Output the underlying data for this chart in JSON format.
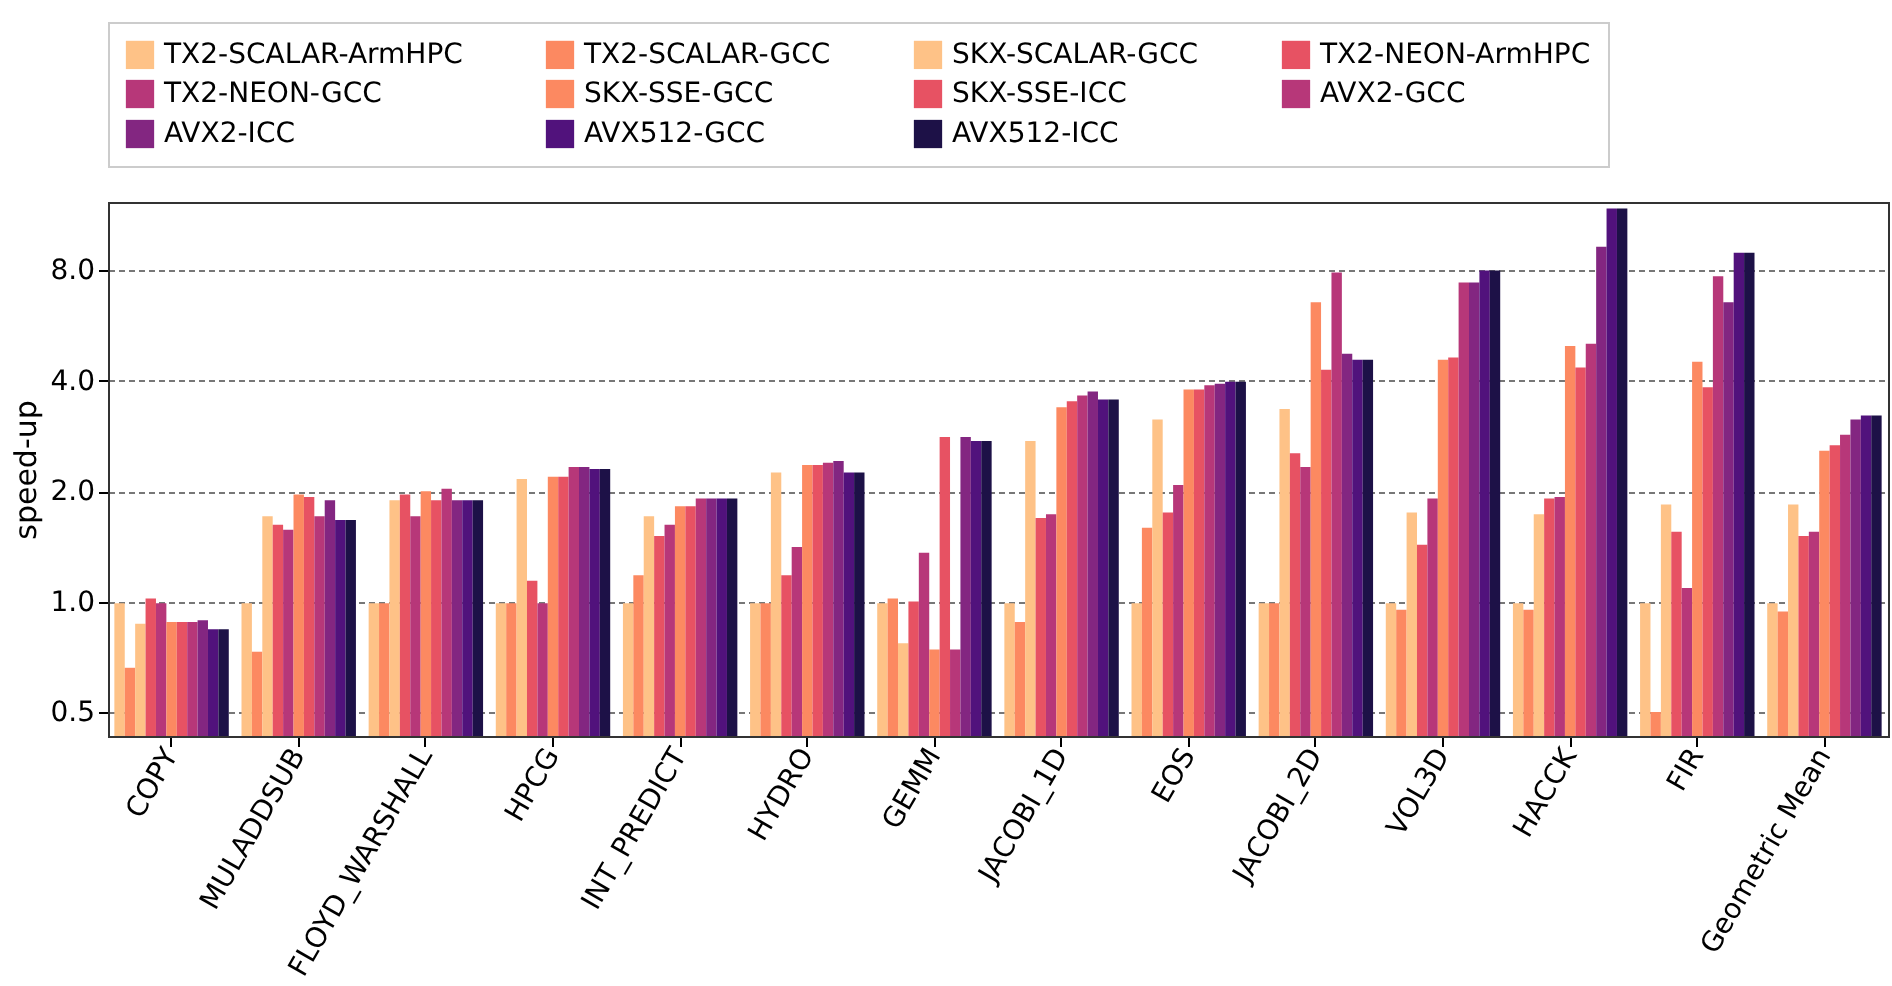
{
  "chart_data": {
    "type": "bar",
    "ylabel": "speed-up",
    "log": "y",
    "grid": "y",
    "legend": "top",
    "ylim": [
      0.43,
      12.3
    ],
    "yticks": [
      0.5,
      {
        "value": 1,
        "label": "1.0"
      },
      {
        "value": 2,
        "label": "2.0"
      },
      {
        "value": 4,
        "label": "4.0"
      },
      {
        "value": 8,
        "label": "8.0"
      }
    ],
    "categories": [
      "COPY",
      "MULADDSUB",
      "FLOYD_WARSHALL",
      "HPCG",
      "INT_PREDICT",
      "HYDRO",
      "GEMM",
      "JACOBI_1D",
      "EOS",
      "JACOBI_2D",
      "VOL3D",
      "HACCK",
      "FIR",
      "Geometric Mean"
    ],
    "series": [
      {
        "name": "TX2-SCALAR-ArmHPC",
        "color": "#fec287",
        "values": [
          0.99,
          0.99,
          0.99,
          0.99,
          0.99,
          0.99,
          0.99,
          0.99,
          0.99,
          0.99,
          0.99,
          0.99,
          0.99,
          0.99
        ]
      },
      {
        "name": "TX2-SCALAR-GCC",
        "color": "#fc8961",
        "values": [
          0.66,
          0.73,
          0.99,
          0.99,
          1.18,
          0.99,
          1.02,
          0.88,
          1.59,
          0.99,
          0.95,
          0.95,
          0.5,
          0.94
        ]
      },
      {
        "name": "SKX-SCALAR-GCC",
        "color": "#fec287",
        "values": [
          0.87,
          1.71,
          1.89,
          2.16,
          1.71,
          2.25,
          0.77,
          2.74,
          3.14,
          3.35,
          1.75,
          1.73,
          1.84,
          1.84
        ]
      },
      {
        "name": "TX2-NEON-ArmHPC",
        "color": "#e75263",
        "values": [
          1.02,
          1.62,
          1.96,
          1.14,
          1.51,
          1.18,
          1.0,
          1.69,
          1.75,
          2.54,
          1.43,
          1.91,
          1.55,
          1.51
        ]
      },
      {
        "name": "TX2-NEON-GCC",
        "color": "#b73779",
        "values": [
          0.99,
          1.57,
          1.71,
          0.99,
          1.62,
          1.41,
          1.36,
          1.73,
          2.08,
          2.33,
          1.91,
          1.93,
          1.09,
          1.55
        ]
      },
      {
        "name": "SKX-SSE-GCC",
        "color": "#fc8961",
        "values": [
          0.88,
          1.96,
          2.0,
          2.19,
          1.82,
          2.36,
          0.74,
          3.39,
          3.79,
          6.55,
          4.57,
          4.98,
          4.51,
          2.58
        ]
      },
      {
        "name": "SKX-SSE-ICC",
        "color": "#e75263",
        "values": [
          0.88,
          1.93,
          1.89,
          2.19,
          1.82,
          2.36,
          2.81,
          3.52,
          3.79,
          4.29,
          4.63,
          4.35,
          3.84,
          2.67
        ]
      },
      {
        "name": "AVX2-GCC",
        "color": "#b73779",
        "values": [
          0.88,
          1.71,
          2.03,
          2.33,
          1.91,
          2.39,
          0.74,
          3.65,
          3.89,
          7.9,
          7.42,
          5.05,
          7.71,
          2.85
        ]
      },
      {
        "name": "AVX2-ICC",
        "color": "#832681",
        "values": [
          0.89,
          1.89,
          1.89,
          2.33,
          1.91,
          2.42,
          2.81,
          3.74,
          3.93,
          4.74,
          7.42,
          9.29,
          6.55,
          3.14
        ]
      },
      {
        "name": "AVX512-GCC",
        "color": "#51127c",
        "values": [
          0.84,
          1.67,
          1.89,
          2.3,
          1.91,
          2.25,
          2.74,
          3.56,
          3.98,
          4.57,
          8.0,
          11.8,
          8.95,
          3.22
        ]
      },
      {
        "name": "AVX512-ICC",
        "color": "#1d1147",
        "values": [
          0.84,
          1.67,
          1.89,
          2.3,
          1.91,
          2.25,
          2.74,
          3.56,
          3.98,
          4.57,
          8.0,
          11.8,
          8.95,
          3.22
        ]
      }
    ]
  }
}
